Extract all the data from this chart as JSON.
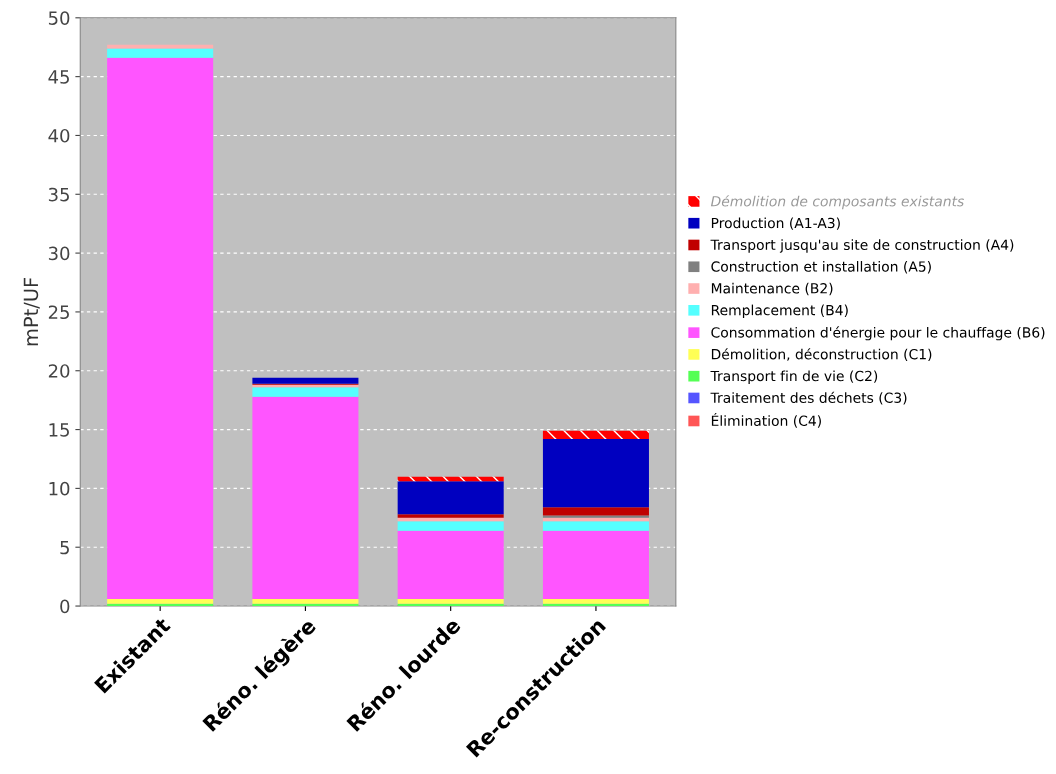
{
  "chart_data": {
    "type": "bar",
    "stacked": true,
    "ylabel": "mPt/UF",
    "categories": [
      "Existant",
      "Réno. légère",
      "Réno. lourde",
      "Re-construction"
    ],
    "ylim": [
      0,
      50
    ],
    "yticks": [
      0,
      5,
      10,
      15,
      20,
      25,
      30,
      35,
      40,
      45,
      50
    ],
    "grid": "y",
    "legend": "right",
    "series": [
      {
        "name": "Élimination (C4)",
        "color": "#ff5555",
        "values": [
          0,
          0,
          0,
          0
        ]
      },
      {
        "name": "Traitement des déchets (C3)",
        "color": "#5555ff",
        "values": [
          0,
          0,
          0,
          0
        ]
      },
      {
        "name": "Transport fin de vie (C2)",
        "color": "#55ff55",
        "values": [
          0.2,
          0.2,
          0.2,
          0.2
        ]
      },
      {
        "name": "Démolition, déconstruction (C1)",
        "color": "#ffff55",
        "values": [
          0.4,
          0.4,
          0.4,
          0.4
        ]
      },
      {
        "name": "Consommation d'énergie pour le chauffage (B6)",
        "color": "#ff55ff",
        "values": [
          46.0,
          17.2,
          5.8,
          5.8
        ]
      },
      {
        "name": "Remplacement (B4)",
        "color": "#55ffff",
        "values": [
          0.8,
          0.8,
          0.8,
          0.8
        ]
      },
      {
        "name": "Maintenance (B2)",
        "color": "#ffafaf",
        "values": [
          0.3,
          0.2,
          0.3,
          0.3
        ]
      },
      {
        "name": "Construction et installation (A5)",
        "color": "#808080",
        "values": [
          0,
          0,
          0,
          0.2
        ]
      },
      {
        "name": "Transport jusqu'au site de construction (A4)",
        "color": "#c00000",
        "values": [
          0,
          0.1,
          0.3,
          0.7
        ]
      },
      {
        "name": "Production (A1-A3)",
        "color": "#0000c0",
        "values": [
          0,
          0.5,
          2.8,
          5.8
        ]
      },
      {
        "name": "Démolition de composants existants",
        "color": "#ff0000",
        "values": [
          0,
          0,
          0.4,
          0.7
        ]
      }
    ]
  }
}
